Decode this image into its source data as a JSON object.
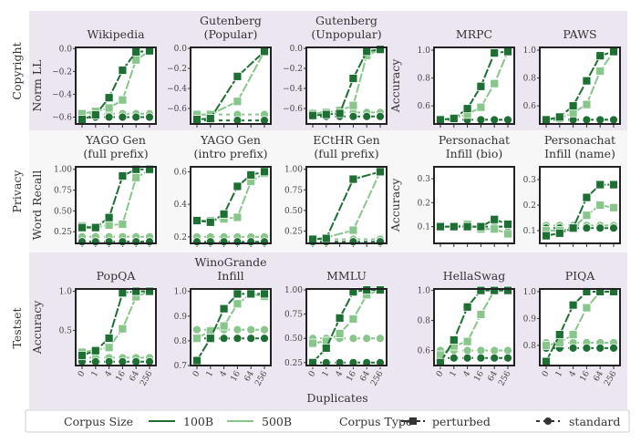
{
  "colors": {
    "c100B": "#1d6f34",
    "c500B": "#88c68b",
    "band": "#ece6f1"
  },
  "x_ticks": [
    "0",
    "1",
    "4",
    "16",
    "64",
    "256"
  ],
  "xlabel": "Duplicates",
  "rows": [
    "Copyright",
    "Privacy",
    "Testset"
  ],
  "legend": {
    "size_title": "Corpus Size",
    "size_100": "100B",
    "size_500": "500B",
    "type_title": "Corpus Type",
    "perturbed": "perturbed",
    "standard": "standard"
  },
  "chart_data": [
    {
      "type": "line",
      "row": 0,
      "col": 0,
      "title": [
        "Wikipedia"
      ],
      "ylabel": "Norm LL",
      "ylim": [
        -0.66,
        0.01
      ],
      "yticks": [
        "0.0",
        "-0.2",
        "-0.4",
        "-0.6"
      ],
      "ytick_vals": [
        0,
        -0.2,
        -0.4,
        -0.6
      ],
      "series": [
        {
          "name": "100B perturbed",
          "values": [
            -0.62,
            -0.58,
            -0.43,
            -0.19,
            -0.03,
            -0.02
          ]
        },
        {
          "name": "500B perturbed",
          "values": [
            -0.57,
            -0.55,
            -0.52,
            -0.45,
            -0.1,
            -0.02
          ]
        },
        {
          "name": "100B standard",
          "values": [
            -0.61,
            -0.6,
            -0.6,
            -0.6,
            -0.6,
            -0.6
          ]
        },
        {
          "name": "500B standard",
          "values": [
            -0.57,
            -0.57,
            -0.57,
            -0.57,
            -0.57,
            -0.57
          ]
        }
      ]
    },
    {
      "type": "line",
      "row": 0,
      "col": 1,
      "title": [
        "Gutenberg",
        "(Popular)"
      ],
      "ylim": [
        -0.755,
        0.01
      ],
      "yticks": [
        "0.0",
        "-0.2",
        "-0.4",
        "-0.6"
      ],
      "ytick_vals": [
        0,
        -0.2,
        -0.4,
        -0.6
      ],
      "series": [
        {
          "name": "100B perturbed",
          "values": [
            -0.71,
            -0.7,
            null,
            -0.28,
            null,
            -0.03
          ]
        },
        {
          "name": "500B perturbed",
          "values": [
            -0.66,
            -0.66,
            null,
            -0.53,
            null,
            -0.03
          ]
        },
        {
          "name": "100B standard",
          "values": [
            -0.72,
            -0.72,
            null,
            -0.72,
            null,
            -0.72
          ]
        },
        {
          "name": "500B standard",
          "values": [
            -0.66,
            -0.66,
            null,
            -0.66,
            null,
            -0.66
          ]
        }
      ]
    },
    {
      "type": "line",
      "row": 0,
      "col": 2,
      "title": [
        "Gutenberg",
        "(Unpopular)"
      ],
      "ylim": [
        -0.755,
        0.01
      ],
      "yticks": [
        "0.0",
        "-0.2",
        "-0.4",
        "-0.6"
      ],
      "ytick_vals": [
        0,
        -0.2,
        -0.4,
        -0.6
      ],
      "series": [
        {
          "name": "100B perturbed",
          "values": [
            -0.67,
            -0.66,
            -0.65,
            -0.3,
            -0.03,
            -0.01
          ]
        },
        {
          "name": "500B perturbed",
          "values": [
            -0.65,
            -0.64,
            -0.62,
            -0.57,
            -0.07,
            -0.01
          ]
        },
        {
          "name": "100B standard",
          "values": [
            -0.68,
            -0.68,
            -0.68,
            -0.68,
            -0.68,
            -0.68
          ]
        },
        {
          "name": "500B standard",
          "values": [
            -0.64,
            -0.64,
            -0.64,
            -0.64,
            -0.64,
            -0.64
          ]
        }
      ]
    },
    {
      "type": "line",
      "row": 0,
      "col": 3,
      "title": [
        "MRPC"
      ],
      "ylabel": "Accuracy",
      "ylim": [
        0.47,
        1.02
      ],
      "yticks": [
        "1.0",
        "0.8",
        "0.6"
      ],
      "ytick_vals": [
        1,
        0.8,
        0.6
      ],
      "series": [
        {
          "name": "100B perturbed",
          "values": [
            0.5,
            0.51,
            0.58,
            0.74,
            0.98,
            0.99
          ]
        },
        {
          "name": "500B perturbed",
          "values": [
            0.5,
            0.51,
            0.54,
            0.59,
            0.76,
            0.99
          ]
        },
        {
          "name": "100B standard",
          "values": [
            0.5,
            0.5,
            0.5,
            0.5,
            0.5,
            0.5
          ]
        },
        {
          "name": "500B standard",
          "values": [
            0.5,
            0.5,
            0.5,
            0.5,
            0.5,
            0.5
          ]
        }
      ]
    },
    {
      "type": "line",
      "row": 0,
      "col": 4,
      "title": [
        "PAWS"
      ],
      "ylim": [
        0.47,
        1.02
      ],
      "yticks": [
        "1.0",
        "0.8",
        "0.6"
      ],
      "ytick_vals": [
        1,
        0.8,
        0.6
      ],
      "series": [
        {
          "name": "100B perturbed",
          "values": [
            0.5,
            0.52,
            0.6,
            0.78,
            0.96,
            0.99
          ]
        },
        {
          "name": "500B perturbed",
          "values": [
            0.5,
            0.51,
            0.55,
            0.61,
            0.85,
            0.99
          ]
        },
        {
          "name": "100B standard",
          "values": [
            0.5,
            0.5,
            0.5,
            0.5,
            0.5,
            0.5
          ]
        },
        {
          "name": "500B standard",
          "values": [
            0.5,
            0.5,
            0.5,
            0.5,
            0.5,
            0.5
          ]
        }
      ]
    },
    {
      "type": "line",
      "row": 1,
      "col": 0,
      "title": [
        "YAGO Gen",
        "(full prefix)"
      ],
      "ylabel": "Word Recall",
      "ylim": [
        0.11,
        1.03
      ],
      "yticks": [
        "1.00",
        "0.75",
        "0.50",
        "0.25"
      ],
      "ytick_vals": [
        1,
        0.75,
        0.5,
        0.25
      ],
      "series": [
        {
          "name": "100B perturbed",
          "values": [
            0.3,
            0.3,
            0.42,
            0.92,
            1.0,
            1.0
          ]
        },
        {
          "name": "500B perturbed",
          "values": [
            0.32,
            0.3,
            0.33,
            0.34,
            0.9,
            0.99
          ]
        },
        {
          "name": "100B standard",
          "values": [
            0.13,
            0.13,
            0.13,
            0.13,
            0.13,
            0.13
          ]
        },
        {
          "name": "500B standard",
          "values": [
            0.19,
            0.19,
            0.19,
            0.19,
            0.19,
            0.19
          ]
        }
      ]
    },
    {
      "type": "line",
      "row": 1,
      "col": 1,
      "title": [
        "YAGO Gen",
        "(intro prefix)"
      ],
      "ylim": [
        0.16,
        0.63
      ],
      "yticks": [
        "0.6",
        "0.4",
        "0.2"
      ],
      "ytick_vals": [
        0.6,
        0.4,
        0.2
      ],
      "series": [
        {
          "name": "100B perturbed",
          "values": [
            0.3,
            0.29,
            0.34,
            0.51,
            0.58,
            0.6
          ]
        },
        {
          "name": "500B perturbed",
          "values": [
            0.3,
            0.3,
            0.31,
            0.32,
            0.54,
            0.59
          ]
        },
        {
          "name": "100B standard",
          "values": [
            0.17,
            0.17,
            0.17,
            0.17,
            0.17,
            0.17
          ]
        },
        {
          "name": "500B standard",
          "values": [
            0.2,
            0.2,
            0.2,
            0.2,
            0.2,
            0.2
          ]
        }
      ]
    },
    {
      "type": "line",
      "row": 1,
      "col": 2,
      "title": [
        "ECtHR Gen",
        "(full prefix)"
      ],
      "ylim": [
        0.1,
        1.03
      ],
      "yticks": [
        "1.00",
        "0.75",
        "0.50",
        "0.25"
      ],
      "ytick_vals": [
        1,
        0.75,
        0.5,
        0.25
      ],
      "series": [
        {
          "name": "100B perturbed",
          "values": [
            0.15,
            0.16,
            null,
            0.88,
            null,
            0.97
          ]
        },
        {
          "name": "500B perturbed",
          "values": [
            0.15,
            0.17,
            null,
            0.26,
            null,
            0.97
          ]
        },
        {
          "name": "100B standard",
          "values": [
            0.12,
            0.12,
            null,
            0.12,
            null,
            0.12
          ]
        },
        {
          "name": "500B standard",
          "values": [
            0.15,
            0.15,
            null,
            0.15,
            null,
            0.15
          ]
        }
      ]
    },
    {
      "type": "line",
      "row": 1,
      "col": 3,
      "title": [
        "Personachat",
        "Infill (bio)"
      ],
      "ylabel": "Accuracy",
      "ylim": [
        0.03,
        0.35
      ],
      "yticks": [
        "0.3",
        "0.2",
        "0.1"
      ],
      "ytick_vals": [
        0.3,
        0.2,
        0.1
      ],
      "series": [
        {
          "name": "100B perturbed",
          "values": [
            0.1,
            0.1,
            0.1,
            0.1,
            0.13,
            0.11
          ]
        },
        {
          "name": "500B perturbed",
          "values": [
            0.1,
            0.1,
            0.11,
            0.09,
            0.09,
            0.07
          ]
        },
        {
          "name": "100B standard",
          "values": [
            0.1,
            0.1,
            0.1,
            0.1,
            0.1,
            0.1
          ]
        },
        {
          "name": "500B standard",
          "values": [
            0.1,
            0.1,
            0.1,
            0.1,
            0.1,
            0.1
          ]
        }
      ]
    },
    {
      "type": "line",
      "row": 1,
      "col": 4,
      "title": [
        "Personachat",
        "Infill (name)"
      ],
      "ylim": [
        0.05,
        0.35
      ],
      "yticks": [
        "0.3",
        "0.2",
        "0.1"
      ],
      "ytick_vals": [
        0.3,
        0.2,
        0.1
      ],
      "series": [
        {
          "name": "100B perturbed",
          "values": [
            0.08,
            0.09,
            0.11,
            0.23,
            0.28,
            0.28
          ]
        },
        {
          "name": "500B perturbed",
          "values": [
            0.1,
            0.1,
            0.11,
            0.16,
            0.2,
            0.19
          ]
        },
        {
          "name": "100B standard",
          "values": [
            0.11,
            0.11,
            0.11,
            0.11,
            0.11,
            0.11
          ]
        },
        {
          "name": "500B standard",
          "values": [
            0.12,
            0.12,
            0.12,
            0.12,
            0.12,
            0.12
          ]
        }
      ]
    },
    {
      "type": "line",
      "row": 2,
      "col": 0,
      "title": [
        "PopQA"
      ],
      "ylabel": "Accuracy",
      "ylim": [
        0.05,
        1.03
      ],
      "yticks": [
        "1.0",
        "0.5"
      ],
      "ytick_vals": [
        1,
        0.5
      ],
      "series": [
        {
          "name": "100B perturbed",
          "values": [
            0.18,
            0.24,
            0.4,
            0.98,
            1.0,
            1.0
          ]
        },
        {
          "name": "500B perturbed",
          "values": [
            0.22,
            0.25,
            0.28,
            0.52,
            0.93,
            1.0
          ]
        },
        {
          "name": "100B standard",
          "values": [
            0.1,
            0.1,
            0.1,
            0.1,
            0.1,
            0.1
          ]
        },
        {
          "name": "500B standard",
          "values": [
            0.15,
            0.15,
            0.15,
            0.15,
            0.15,
            0.15
          ]
        }
      ]
    },
    {
      "type": "line",
      "row": 2,
      "col": 1,
      "title": [
        "WinoGrande",
        "Infill"
      ],
      "ylim": [
        0.7,
        1.01
      ],
      "yticks": [
        "1.0",
        "0.9",
        "0.8",
        "0.7"
      ],
      "ytick_vals": [
        1,
        0.9,
        0.8,
        0.7
      ],
      "series": [
        {
          "name": "100B perturbed",
          "values": [
            0.72,
            0.81,
            0.93,
            0.99,
            0.99,
            0.99
          ]
        },
        {
          "name": "500B perturbed",
          "values": [
            0.81,
            0.84,
            0.86,
            0.95,
            0.99,
            0.98
          ]
        },
        {
          "name": "100B standard",
          "values": [
            0.81,
            0.81,
            0.81,
            0.81,
            0.81,
            0.81
          ]
        },
        {
          "name": "500B standard",
          "values": [
            0.845,
            0.845,
            0.845,
            0.845,
            0.845,
            0.845
          ]
        }
      ]
    },
    {
      "type": "line",
      "row": 2,
      "col": 2,
      "title": [
        "MMLU"
      ],
      "ylim": [
        0.22,
        1.01
      ],
      "yticks": [
        "1.00",
        "0.75",
        "0.50",
        "0.25"
      ],
      "ytick_vals": [
        1,
        0.75,
        0.5,
        0.25
      ],
      "series": [
        {
          "name": "100B perturbed",
          "values": [
            0.25,
            0.4,
            0.71,
            0.98,
            1.0,
            1.0
          ]
        },
        {
          "name": "500B perturbed",
          "values": [
            0.45,
            0.47,
            0.55,
            0.7,
            0.95,
            1.0
          ]
        },
        {
          "name": "100B standard",
          "values": [
            0.25,
            0.25,
            0.25,
            0.25,
            0.25,
            0.25
          ]
        },
        {
          "name": "500B standard",
          "values": [
            0.5,
            0.5,
            0.5,
            0.5,
            0.5,
            0.5
          ]
        }
      ]
    },
    {
      "type": "line",
      "row": 2,
      "col": 3,
      "title": [
        "HellaSwag"
      ],
      "ylim": [
        0.5,
        1.01
      ],
      "yticks": [
        "1.0",
        "0.8",
        "0.6"
      ],
      "ytick_vals": [
        1,
        0.8,
        0.6
      ],
      "series": [
        {
          "name": "100B perturbed",
          "values": [
            0.52,
            0.67,
            0.89,
            1.0,
            1.0,
            1.0
          ]
        },
        {
          "name": "500B perturbed",
          "values": [
            0.57,
            0.63,
            0.66,
            0.84,
            1.0,
            1.0
          ]
        },
        {
          "name": "100B standard",
          "values": [
            0.55,
            0.55,
            0.55,
            0.55,
            0.55,
            0.55
          ]
        },
        {
          "name": "500B standard",
          "values": [
            0.6,
            0.6,
            0.6,
            0.6,
            0.6,
            0.6
          ]
        }
      ]
    },
    {
      "type": "line",
      "row": 2,
      "col": 4,
      "title": [
        "PIQA"
      ],
      "ylim": [
        0.725,
        1.01
      ],
      "yticks": [
        "1.0",
        "0.9",
        "0.8"
      ],
      "ytick_vals": [
        1,
        0.9,
        0.8
      ],
      "series": [
        {
          "name": "100B perturbed",
          "values": [
            0.74,
            0.84,
            0.95,
            1.0,
            1.0,
            1.0
          ]
        },
        {
          "name": "500B perturbed",
          "values": [
            0.8,
            0.81,
            0.84,
            0.94,
            1.0,
            1.0
          ]
        },
        {
          "name": "100B standard",
          "values": [
            0.79,
            0.79,
            0.79,
            0.79,
            0.79,
            0.79
          ]
        },
        {
          "name": "500B standard",
          "values": [
            0.81,
            0.81,
            0.81,
            0.81,
            0.81,
            0.81
          ]
        }
      ]
    }
  ]
}
